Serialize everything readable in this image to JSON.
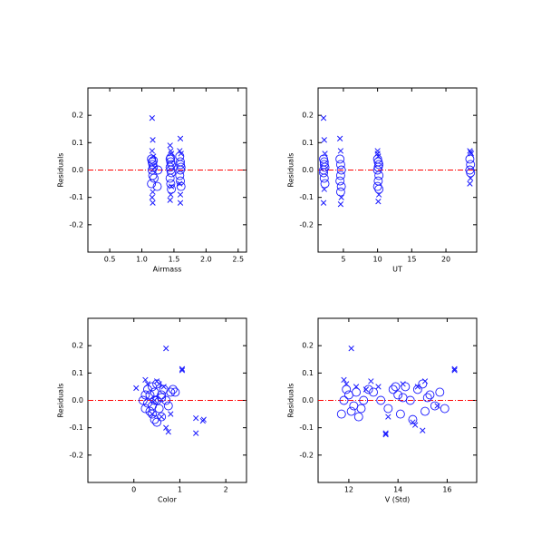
{
  "chart_data": [
    {
      "type": "scatter",
      "xlabel": "Airmass",
      "ylabel": "Residuals",
      "xlim": [
        0.16,
        2.63
      ],
      "ylim": [
        -0.3,
        0.3
      ],
      "xticks": [
        0.5,
        {
          "value": 1.0,
          "label": "1.0"
        },
        1.5,
        {
          "value": 2.0,
          "label": "2.0"
        },
        2.5
      ],
      "yticks": [
        -0.2,
        -0.1,
        {
          "value": 0,
          "label": "0.0"
        },
        0.1,
        0.2
      ],
      "hline": 0,
      "hline_color": "#ff0000",
      "series": [
        {
          "marker": "circle",
          "color": "#1a1aff",
          "x": [
            1.15,
            1.16,
            1.17,
            1.18,
            1.16,
            1.17,
            1.19,
            1.15,
            1.18,
            1.24,
            1.25,
            1.44,
            1.45,
            1.46,
            1.44,
            1.45,
            1.46,
            1.44,
            1.45,
            1.46,
            1.45,
            1.59,
            1.6,
            1.61,
            1.6,
            1.59,
            1.6,
            1.61,
            1.6
          ],
          "values": [
            0.04,
            0.03,
            0.02,
            0.01,
            0.0,
            -0.02,
            -0.03,
            -0.05,
            0.035,
            -0.06,
            0.0,
            0.04,
            0.03,
            0.02,
            0.01,
            0.0,
            -0.01,
            -0.03,
            -0.05,
            -0.07,
            0.045,
            0.05,
            0.03,
            0.01,
            0.0,
            -0.02,
            -0.04,
            -0.06,
            0.02
          ]
        },
        {
          "marker": "cross",
          "color": "#1a1aff",
          "x": [
            1.16,
            1.17,
            1.16,
            1.18,
            1.17,
            1.16,
            1.17,
            1.2,
            1.44,
            1.45,
            1.46,
            1.45,
            1.44,
            1.46,
            1.6,
            1.59,
            1.61,
            1.6,
            1.6,
            1.59
          ],
          "values": [
            0.19,
            0.11,
            0.07,
            0.05,
            -0.08,
            -0.1,
            -0.12,
            0.01,
            0.09,
            0.07,
            0.06,
            -0.09,
            -0.11,
            -0.06,
            0.115,
            0.07,
            0.06,
            -0.09,
            -0.12,
            -0.05
          ]
        }
      ]
    },
    {
      "type": "scatter",
      "xlabel": "UT",
      "ylabel": "Residuals",
      "xlim": [
        1.3,
        24.5
      ],
      "ylim": [
        -0.3,
        0.3
      ],
      "xticks": [
        5,
        10,
        15,
        20
      ],
      "yticks": [
        -0.2,
        -0.1,
        {
          "value": 0,
          "label": "0.0"
        },
        0.1,
        0.2
      ],
      "hline": 0,
      "hline_color": "#ff0000",
      "series": [
        {
          "marker": "circle",
          "color": "#1a1aff",
          "x": [
            2.1,
            2.2,
            2.3,
            2.1,
            2.2,
            2.3,
            2.2,
            2.1,
            4.5,
            4.6,
            4.7,
            4.6,
            4.5,
            4.7,
            4.6,
            10,
            10.1,
            10.2,
            10.1,
            10,
            10.2,
            10.1,
            10,
            10.2,
            23.5,
            23.6,
            23.5,
            23.6
          ],
          "values": [
            0.04,
            0.03,
            0.01,
            -0.01,
            -0.03,
            -0.05,
            0.02,
            0.0,
            0.04,
            0.02,
            0.0,
            -0.02,
            -0.04,
            -0.06,
            -0.08,
            0.04,
            0.03,
            0.02,
            0.01,
            0.0,
            -0.02,
            -0.04,
            -0.06,
            -0.07,
            0.04,
            0.02,
            0.0,
            -0.01
          ]
        },
        {
          "marker": "cross",
          "color": "#1a1aff",
          "x": [
            2.1,
            2.2,
            2.3,
            2.2,
            2.1,
            4.5,
            4.6,
            4.7,
            4.6,
            10,
            10.1,
            10.2,
            10.1,
            10,
            23.5,
            23.6,
            23.7,
            23.6,
            23.5
          ],
          "values": [
            0.19,
            0.11,
            0.06,
            -0.07,
            -0.12,
            0.115,
            0.07,
            -0.1,
            -0.125,
            0.07,
            0.05,
            -0.09,
            -0.115,
            0.06,
            0.07,
            0.065,
            0.06,
            -0.03,
            -0.05
          ]
        }
      ]
    },
    {
      "type": "scatter",
      "xlabel": "Color",
      "ylabel": "Residuals",
      "xlim": [
        -1,
        2.45
      ],
      "ylim": [
        -0.3,
        0.3
      ],
      "xticks": [
        0,
        1,
        2
      ],
      "yticks": [
        -0.2,
        -0.1,
        {
          "value": 0,
          "label": "0.0"
        },
        0.1,
        0.2
      ],
      "hline": 0,
      "hline_color": "#ff0000",
      "series": [
        {
          "marker": "circle",
          "color": "#1a1aff",
          "x": [
            0.2,
            0.25,
            0.3,
            0.3,
            0.35,
            0.4,
            0.4,
            0.45,
            0.45,
            0.5,
            0.5,
            0.55,
            0.6,
            0.6,
            0.65,
            0.7,
            0.75,
            0.8,
            0.85,
            0.9,
            0.35,
            0.5,
            0.25,
            0.6,
            0.45,
            0.4
          ],
          "values": [
            0.0,
            -0.03,
            0.04,
            -0.01,
            0.02,
            0.05,
            -0.05,
            0.03,
            -0.07,
            0.0,
            0.06,
            -0.03,
            0.02,
            -0.06,
            0.04,
            0.0,
            -0.02,
            0.03,
            0.04,
            0.03,
            -0.04,
            -0.08,
            0.02,
            0.01,
            0.0,
            -0.02
          ]
        },
        {
          "marker": "cross",
          "color": "#1a1aff",
          "x": [
            0.05,
            0.25,
            0.3,
            0.4,
            0.5,
            0.55,
            0.6,
            0.7,
            0.7,
            0.75,
            0.8,
            1.05,
            1.05,
            1.35,
            1.35,
            1.5,
            1.52,
            0.65,
            0.45
          ],
          "values": [
            0.045,
            0.075,
            0.06,
            -0.05,
            0.07,
            0.06,
            -0.06,
            0.19,
            -0.1,
            -0.115,
            -0.05,
            0.115,
            0.11,
            -0.12,
            -0.065,
            -0.075,
            -0.07,
            0.05,
            0.0
          ]
        }
      ]
    },
    {
      "type": "scatter",
      "xlabel": "V (Std)",
      "ylabel": "Residuals",
      "xlim": [
        10.75,
        17.2
      ],
      "ylim": [
        -0.3,
        0.3
      ],
      "xticks": [
        12,
        14,
        16
      ],
      "yticks": [
        -0.2,
        -0.1,
        {
          "value": 0,
          "label": "0.0"
        },
        0.1,
        0.2
      ],
      "hline": 0,
      "hline_color": "#ff0000",
      "series": [
        {
          "marker": "circle",
          "color": "#1a1aff",
          "x": [
            11.7,
            11.8,
            11.9,
            12.0,
            12.1,
            12.2,
            12.3,
            12.5,
            12.6,
            12.8,
            13.0,
            13.3,
            13.6,
            13.8,
            14.0,
            14.1,
            14.3,
            14.5,
            14.6,
            14.8,
            15.0,
            15.1,
            15.3,
            15.5,
            15.7,
            15.9,
            12.4,
            14.2,
            15.2,
            13.9
          ],
          "values": [
            -0.05,
            0.0,
            0.04,
            0.02,
            -0.04,
            -0.02,
            0.03,
            -0.03,
            0.0,
            0.04,
            0.03,
            0.0,
            -0.03,
            0.04,
            0.02,
            -0.05,
            0.05,
            0.0,
            -0.07,
            0.04,
            0.06,
            -0.04,
            0.02,
            -0.02,
            0.03,
            -0.03,
            -0.06,
            0.01,
            0.01,
            0.05
          ]
        },
        {
          "marker": "cross",
          "color": "#1a1aff",
          "x": [
            11.8,
            11.9,
            12.1,
            12.3,
            12.9,
            13.2,
            13.5,
            13.5,
            13.6,
            14.2,
            14.6,
            14.7,
            14.8,
            15.0,
            15.1,
            16.3,
            16.3,
            15.6,
            12.7
          ],
          "values": [
            0.075,
            0.06,
            0.19,
            0.05,
            0.07,
            0.05,
            -0.12,
            -0.125,
            -0.06,
            0.06,
            -0.08,
            -0.09,
            0.05,
            -0.11,
            0.07,
            0.115,
            0.11,
            -0.02,
            0.04
          ]
        }
      ]
    }
  ]
}
